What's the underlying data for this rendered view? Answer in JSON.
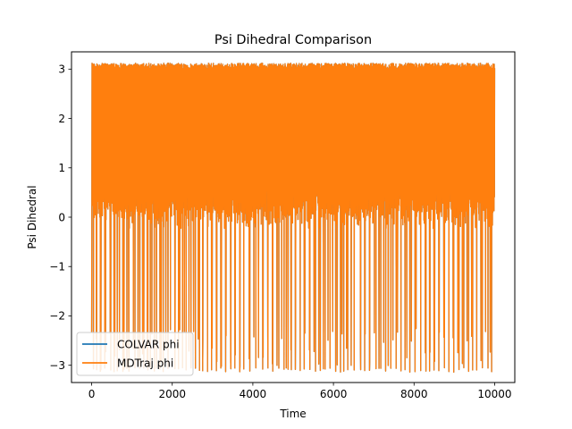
{
  "chart_data": {
    "type": "line",
    "title": "Psi Dihedral Comparison",
    "xlabel": "Time",
    "ylabel": "Psi Dihedral",
    "xlim": [
      -500,
      10500
    ],
    "ylim": [
      -3.35,
      3.35
    ],
    "xticks": [
      0,
      2000,
      4000,
      6000,
      8000,
      10000
    ],
    "xtick_labels": [
      "0",
      "2000",
      "4000",
      "6000",
      "8000",
      "10000"
    ],
    "yticks": [
      -3,
      -2,
      -1,
      0,
      1,
      2,
      3
    ],
    "ytick_labels": [
      "−3",
      "−2",
      "−1",
      "0",
      "1",
      "2",
      "3"
    ],
    "grid": false,
    "legend_position": "lower-left",
    "series": [
      {
        "name": "COLVAR phi",
        "color": "#1f77b4",
        "x_range": [
          0,
          10000
        ],
        "y_range": [
          -3.14,
          3.14
        ]
      },
      {
        "name": "MDTraj phi",
        "color": "#ff7f0e",
        "x_range": [
          0,
          10000
        ],
        "y_range": [
          -3.14,
          3.14
        ]
      }
    ],
    "band": {
      "x_range": [
        0,
        10000
      ],
      "upper_edge": 3.1,
      "lower_edge": 0.1
    },
    "dips_to_bottom": [
      50,
      130,
      220,
      330,
      480,
      560,
      640,
      780,
      880,
      930,
      1080,
      1200,
      1300,
      1400,
      1460,
      1560,
      1700,
      1780,
      1900,
      2070,
      2160,
      2260,
      2350,
      2470,
      2580,
      2680,
      2760,
      2880,
      2980,
      3100,
      3210,
      3330,
      3460,
      3560,
      3680,
      3780,
      3930,
      4080,
      4250,
      4380,
      4500,
      4650,
      4780,
      4880,
      4960,
      5060,
      5180,
      5280,
      5420,
      5560,
      5680,
      5800,
      5920,
      6060,
      6180,
      6260,
      6360,
      6520,
      6680,
      6780,
      6900,
      7060,
      7180,
      7300,
      7430,
      7560,
      7680,
      7780,
      7900,
      8030,
      8170,
      8300,
      8390,
      8500,
      8620,
      8760,
      8870,
      8990,
      9120,
      9240,
      9360,
      9460,
      9560,
      9700,
      9840,
      9930
    ]
  }
}
